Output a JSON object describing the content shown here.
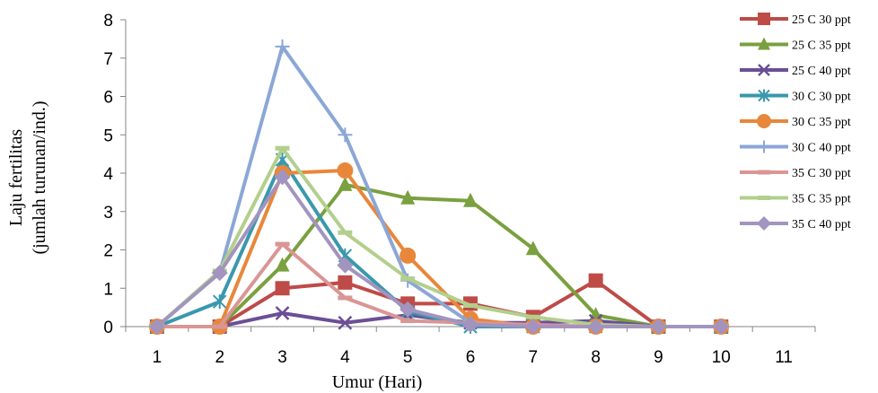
{
  "chart_data": {
    "type": "line",
    "xlabel": "Umur (Hari)",
    "ylabel_line1": "Laju fertilitas",
    "ylabel_line2": "(jumlah turunan/ind.)",
    "x_ticks": [
      1,
      2,
      3,
      4,
      5,
      6,
      7,
      8,
      9,
      10,
      11
    ],
    "y_ticks": [
      0,
      1,
      2,
      3,
      4,
      5,
      6,
      7,
      8
    ],
    "xlim": [
      0.5,
      11.5
    ],
    "ylim": [
      0,
      8
    ],
    "grid": false,
    "legend_position": "right",
    "series": [
      {
        "name": "25 C  30 ppt",
        "color": "#be4b48",
        "marker": "square",
        "x": [
          1,
          2,
          3,
          4,
          5,
          6,
          7,
          8,
          9,
          10
        ],
        "y": [
          0,
          0,
          1.0,
          1.15,
          0.6,
          0.6,
          0.25,
          1.2,
          0,
          0
        ]
      },
      {
        "name": "25 C  35 ppt",
        "color": "#7aa03f",
        "marker": "triangle",
        "x": [
          1,
          2,
          3,
          4,
          5,
          6,
          7,
          8,
          9,
          10
        ],
        "y": [
          0,
          0,
          1.6,
          3.7,
          3.35,
          3.28,
          2.03,
          0.3,
          0,
          0
        ]
      },
      {
        "name": "25 C  40 ppt",
        "color": "#6b4f96",
        "marker": "x",
        "x": [
          1,
          2,
          3,
          4,
          5,
          6,
          7,
          8,
          9,
          10
        ],
        "y": [
          0,
          0,
          0.35,
          0.1,
          0.3,
          0.1,
          0.1,
          0.15,
          0,
          0
        ]
      },
      {
        "name": "30 C  30 ppt",
        "color": "#3a98ad",
        "marker": "asterisk",
        "x": [
          1,
          2,
          3,
          4,
          5,
          6,
          7,
          8,
          9,
          10
        ],
        "y": [
          0,
          0.65,
          4.35,
          1.85,
          0.4,
          0,
          0,
          0,
          0,
          0
        ]
      },
      {
        "name": "30 C  35 ppt",
        "color": "#e8873a",
        "marker": "circle",
        "x": [
          1,
          2,
          3,
          4,
          5,
          6,
          7,
          8,
          9,
          10
        ],
        "y": [
          0,
          0,
          4.0,
          4.07,
          1.85,
          0.2,
          0,
          0,
          0,
          0
        ]
      },
      {
        "name": "30 C  40 ppt",
        "color": "#8ba7d6",
        "marker": "plus",
        "x": [
          1,
          2,
          3,
          4,
          5,
          6,
          7,
          8,
          9,
          10
        ],
        "y": [
          0,
          1.4,
          7.3,
          5.0,
          1.2,
          0.1,
          0,
          0,
          0,
          0
        ]
      },
      {
        "name": "35 C  30 ppt",
        "color": "#d99694",
        "marker": "dash",
        "x": [
          1,
          2,
          3,
          4,
          5,
          6,
          7,
          8,
          9,
          10
        ],
        "y": [
          0,
          0,
          2.15,
          0.75,
          0.15,
          0.1,
          0.05,
          0,
          0,
          0
        ]
      },
      {
        "name": "35 C  35 ppt",
        "color": "#b2cf8c",
        "marker": "dash",
        "x": [
          1,
          2,
          3,
          4,
          5,
          6,
          7,
          8,
          9,
          10
        ],
        "y": [
          0,
          1.45,
          4.65,
          2.45,
          1.25,
          0.55,
          0.25,
          0.05,
          0,
          0
        ]
      },
      {
        "name": "35 C  40 ppt",
        "color": "#a294bf",
        "marker": "diamond",
        "x": [
          1,
          2,
          3,
          4,
          5,
          6,
          7,
          8,
          9,
          10
        ],
        "y": [
          0,
          1.4,
          3.9,
          1.6,
          0.45,
          0.05,
          0,
          0,
          0,
          0
        ]
      }
    ]
  }
}
